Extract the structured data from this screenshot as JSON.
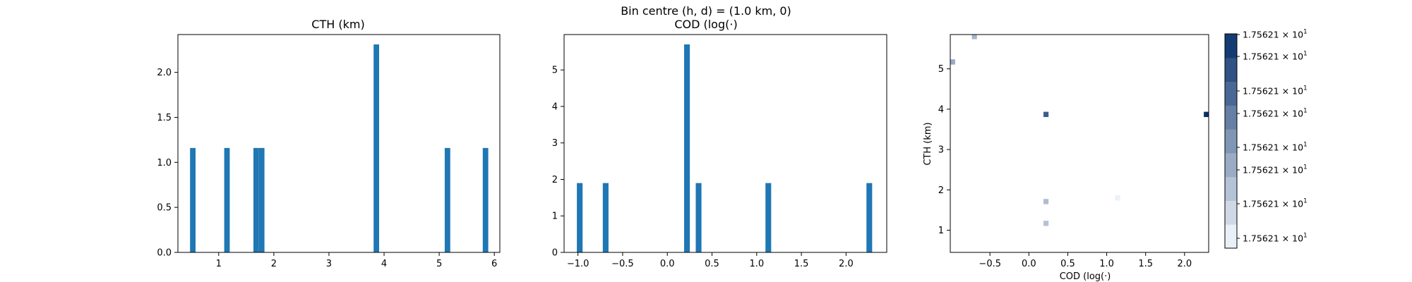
{
  "suptitle": "Bin centre (h, d) = (1.0 km, 0)",
  "colors": {
    "bar": "#1f77b4"
  },
  "chart_data": [
    {
      "type": "bar",
      "title": "CTH (km)",
      "xlabel": "",
      "ylabel": "",
      "xlim": [
        0.26,
        6.1
      ],
      "ylim": [
        0,
        2.42
      ],
      "bin_width": 0.1,
      "xticks": [
        1,
        2,
        3,
        4,
        5,
        6
      ],
      "yticks": [
        0.0,
        0.5,
        1.0,
        1.5,
        2.0
      ],
      "bins": [
        {
          "x": 0.53,
          "value": 1.16
        },
        {
          "x": 1.15,
          "value": 1.16
        },
        {
          "x": 1.68,
          "value": 1.16
        },
        {
          "x": 1.78,
          "value": 1.16
        },
        {
          "x": 3.86,
          "value": 2.31
        },
        {
          "x": 5.15,
          "value": 1.16
        },
        {
          "x": 5.84,
          "value": 1.16
        }
      ]
    },
    {
      "type": "bar",
      "title": "COD (log(·)",
      "xlabel": "",
      "ylabel": "",
      "xlim": [
        -1.155,
        2.455
      ],
      "ylim": [
        0,
        5.97
      ],
      "bin_width": 0.064,
      "xticks": [
        -1.0,
        -0.5,
        0.0,
        0.5,
        1.0,
        1.5,
        2.0
      ],
      "yticks": [
        0,
        1,
        2,
        3,
        4,
        5
      ],
      "bins": [
        {
          "x": -0.98,
          "value": 1.9
        },
        {
          "x": -0.69,
          "value": 1.9
        },
        {
          "x": 0.22,
          "value": 5.7
        },
        {
          "x": 0.35,
          "value": 1.9
        },
        {
          "x": 1.13,
          "value": 1.9
        },
        {
          "x": 2.26,
          "value": 1.9
        }
      ]
    },
    {
      "type": "heatmap",
      "title": "",
      "xlabel": "COD (log(·)",
      "ylabel": "CTH (km)",
      "xlim": [
        -1.01,
        2.31
      ],
      "ylim": [
        0.45,
        5.85
      ],
      "xticks": [
        -0.5,
        0.0,
        0.5,
        1.0,
        1.5,
        2.0
      ],
      "yticks": [
        1,
        2,
        3,
        4,
        5
      ],
      "cell_w": 0.065,
      "cell_h": 0.13,
      "colormap": "Blues",
      "colorbar_ticks": [
        "1.75621",
        "1.75621",
        "1.75621",
        "1.75621",
        "1.75621",
        "1.75621",
        "1.75621",
        "1.75621"
      ],
      "colorbar_base": "10",
      "colorbar_exp": "1",
      "cells": [
        {
          "x": -0.7,
          "y": 5.8,
          "level": 0.35
        },
        {
          "x": -0.98,
          "y": 5.17,
          "level": 0.4
        },
        {
          "x": 0.22,
          "y": 3.87,
          "level": 0.78
        },
        {
          "x": 2.28,
          "y": 3.87,
          "level": 1.0
        },
        {
          "x": 0.22,
          "y": 1.71,
          "level": 0.3
        },
        {
          "x": 0.22,
          "y": 1.17,
          "level": 0.28
        },
        {
          "x": 1.14,
          "y": 1.8,
          "level": 0.05
        }
      ]
    }
  ]
}
